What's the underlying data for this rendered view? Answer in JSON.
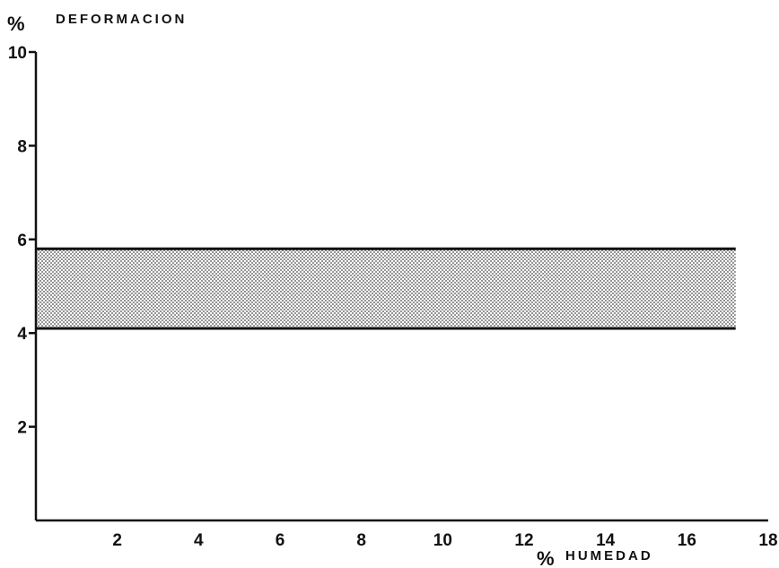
{
  "chart_data": {
    "type": "area",
    "y_axis_title": {
      "prefix": "%",
      "label": "DEFORMACION"
    },
    "x_axis_title": {
      "prefix": "%",
      "label": "HUMEDAD"
    },
    "xlim": [
      0,
      18
    ],
    "ylim": [
      0,
      10
    ],
    "x_ticks": [
      2,
      4,
      6,
      8,
      10,
      12,
      14,
      16,
      18
    ],
    "y_ticks": [
      2,
      4,
      6,
      8,
      10
    ],
    "band": {
      "x": [
        0,
        17.2
      ],
      "lower": 4.1,
      "upper": 5.8,
      "fill": "stippled"
    },
    "grid": false,
    "legend": "none"
  },
  "colors": {
    "ink": "#111111",
    "band_dot": "#4a4a4a",
    "background": "#ffffff"
  }
}
